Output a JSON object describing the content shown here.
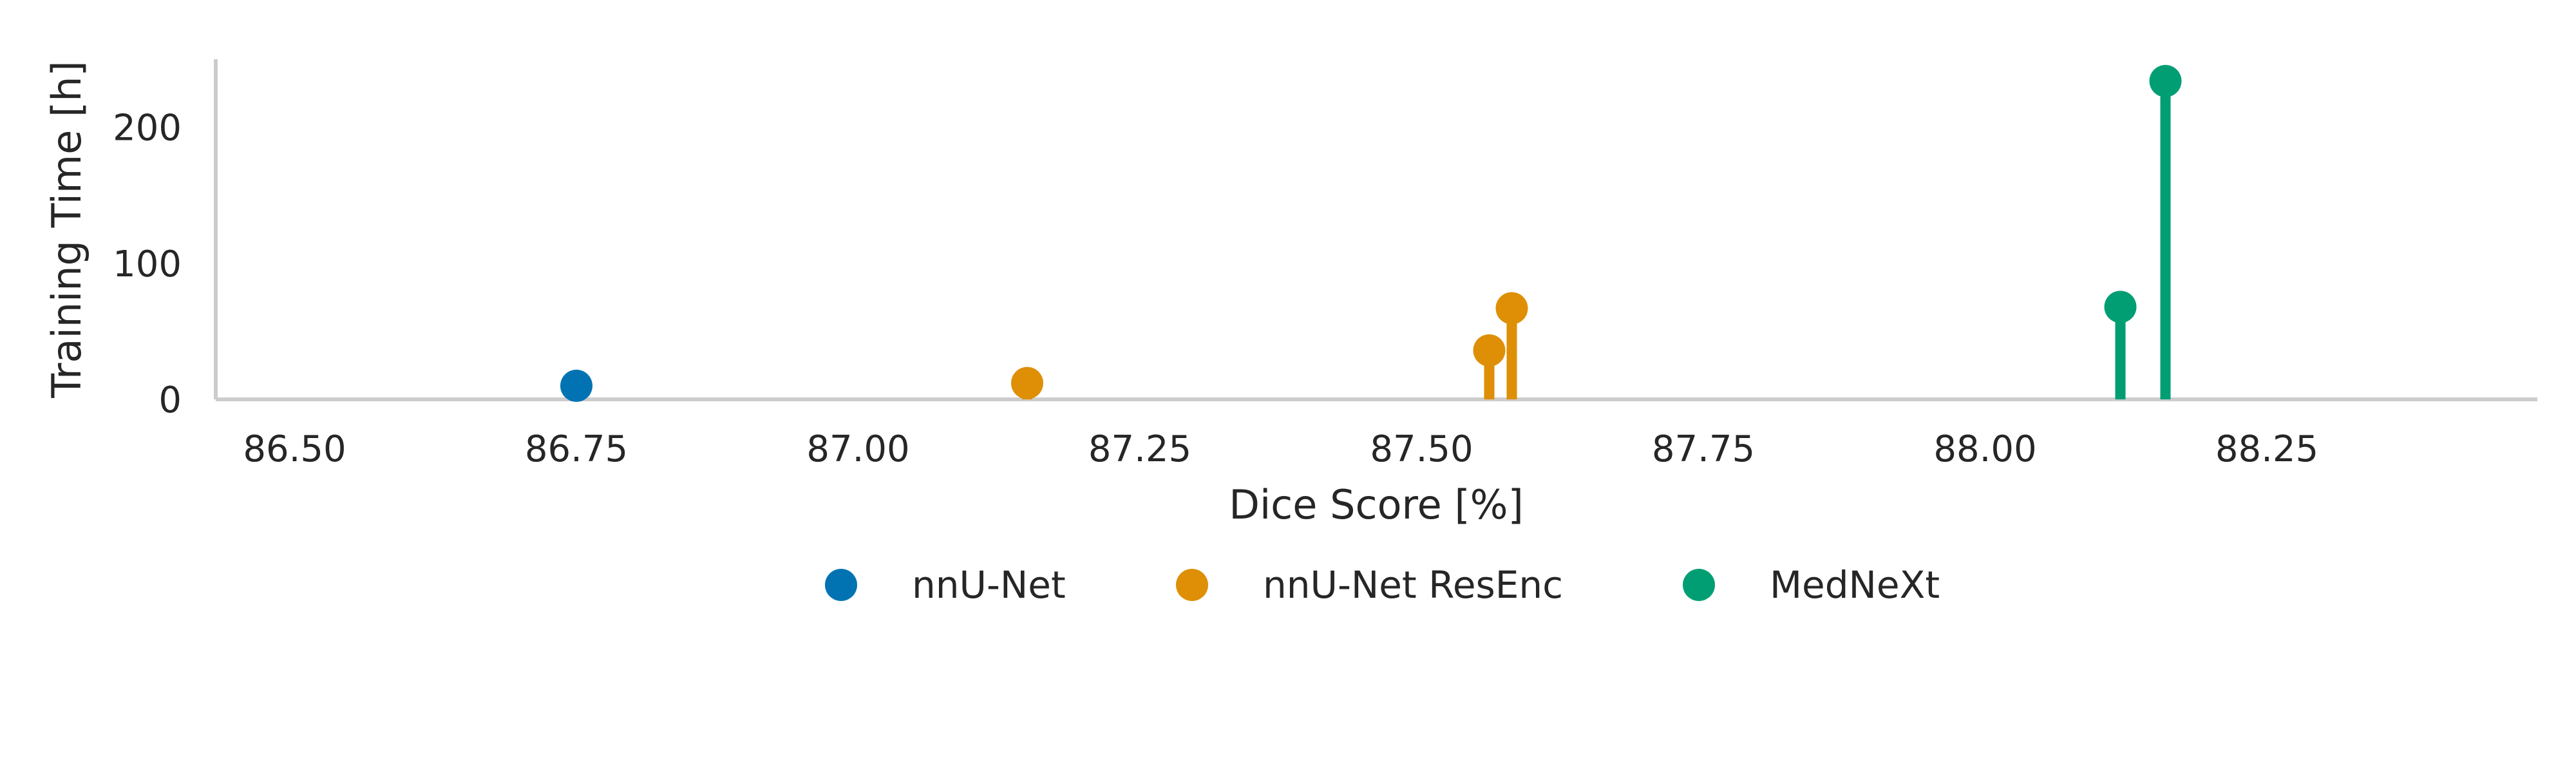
{
  "chart_data": {
    "type": "scatter",
    "subtype": "lollipop",
    "xlabel": "Dice Score [%]",
    "ylabel": "Training Time [h]",
    "xlim": [
      86.43,
      88.49
    ],
    "ylim": [
      0,
      250
    ],
    "xticks": [
      "86.50",
      "86.75",
      "87.00",
      "87.25",
      "87.50",
      "87.75",
      "88.00",
      "88.25"
    ],
    "yticks": [
      "0",
      "100",
      "200"
    ],
    "grid": false,
    "legend_position": "bottom-center",
    "series": [
      {
        "name": "nnU-Net",
        "color": "#0173b2",
        "points": [
          {
            "x": 86.75,
            "y": 10
          }
        ]
      },
      {
        "name": "nnU-Net ResEnc",
        "color": "#de8f05",
        "points": [
          {
            "x": 87.15,
            "y": 12
          },
          {
            "x": 87.56,
            "y": 36
          },
          {
            "x": 87.58,
            "y": 67
          }
        ]
      },
      {
        "name": "MedNeXt",
        "color": "#029e73",
        "points": [
          {
            "x": 88.12,
            "y": 68
          },
          {
            "x": 88.16,
            "y": 234
          }
        ]
      }
    ]
  }
}
